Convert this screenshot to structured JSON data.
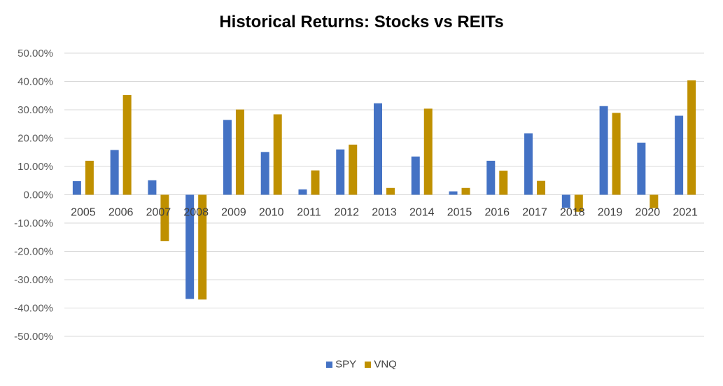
{
  "chart_data": {
    "type": "bar",
    "title": "Historical Returns: Stocks vs REITs",
    "categories": [
      "2005",
      "2006",
      "2007",
      "2008",
      "2009",
      "2010",
      "2011",
      "2012",
      "2013",
      "2014",
      "2015",
      "2016",
      "2017",
      "2018",
      "2019",
      "2020",
      "2021"
    ],
    "series": [
      {
        "name": "SPY",
        "color": "#4472c4",
        "values": [
          4.8,
          15.8,
          5.1,
          -36.8,
          26.4,
          15.1,
          1.9,
          16.0,
          32.3,
          13.5,
          1.2,
          12.0,
          21.7,
          -4.6,
          31.3,
          18.4,
          27.9
        ]
      },
      {
        "name": "VNQ",
        "color": "#bf9000",
        "values": [
          12.0,
          35.2,
          -16.4,
          -37.0,
          30.1,
          28.4,
          8.6,
          17.7,
          2.4,
          30.4,
          2.4,
          8.5,
          4.9,
          -6.0,
          28.9,
          -4.7,
          40.4
        ]
      }
    ],
    "ylim": [
      -50,
      50
    ],
    "yticks": [
      "50.00%",
      "40.00%",
      "30.00%",
      "20.00%",
      "10.00%",
      "0.00%",
      "-10.00%",
      "-20.00%",
      "-30.00%",
      "-40.00%",
      "-50.00%"
    ],
    "ytick_values": [
      50,
      40,
      30,
      20,
      10,
      0,
      -10,
      -20,
      -30,
      -40,
      -50
    ],
    "grid": true,
    "legend_position": "bottom",
    "xlabel": "",
    "ylabel": ""
  },
  "colors": {
    "grid": "#d9d9d9",
    "axis_text": "#595959",
    "category_text": "#404040"
  }
}
